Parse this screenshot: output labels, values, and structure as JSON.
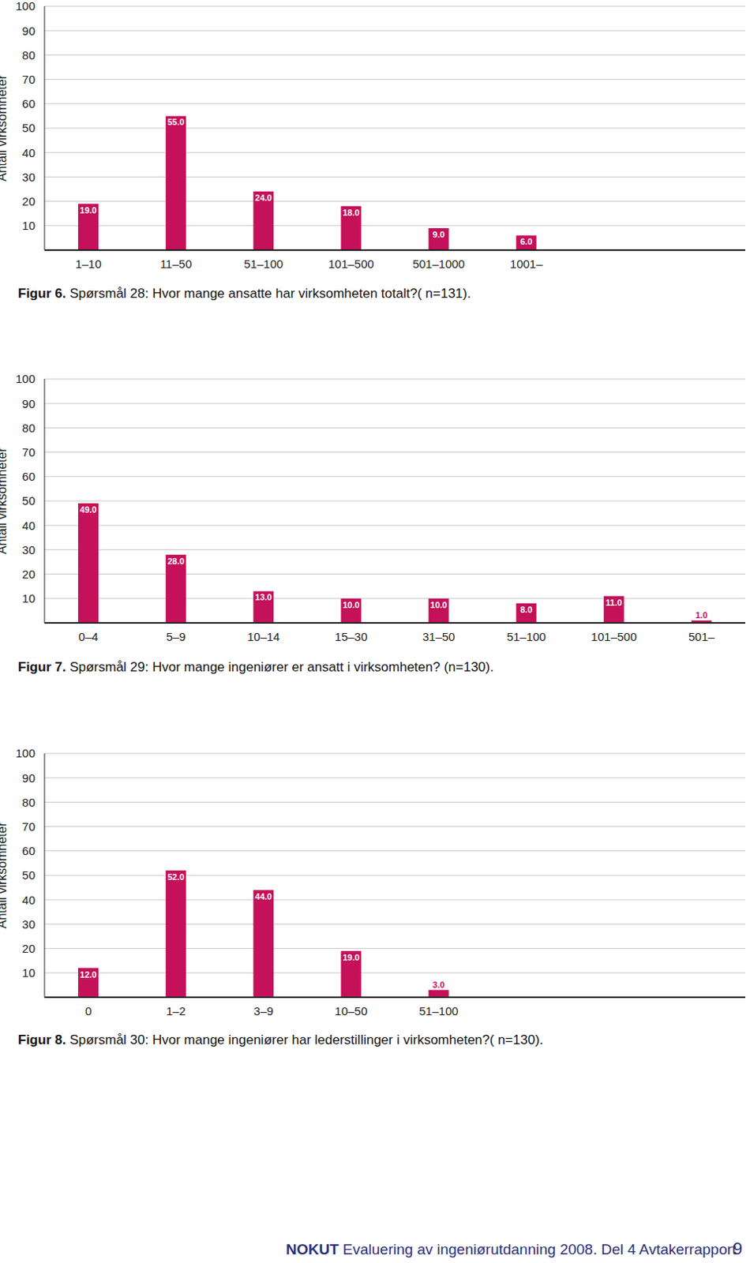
{
  "chart_data": [
    {
      "type": "bar",
      "figure_label": "Figur 6.",
      "title": "Spørsmål 28: Hvor mange ansatte har virksomheten totalt?( n=131).",
      "y_label": "Antall virksomheter",
      "categories": [
        "1–10",
        "11–50",
        "51–100",
        "101–500",
        "501–1000",
        "1001–"
      ],
      "values": [
        19,
        55,
        24,
        18,
        9,
        6
      ],
      "value_labels": [
        "19.0",
        "55.0",
        "24.0",
        "18.0",
        "9.0",
        "6.0"
      ],
      "color": "#c5105a",
      "ylim": [
        0,
        100
      ],
      "yticks": [
        10,
        20,
        30,
        40,
        50,
        60,
        70,
        80,
        90,
        100
      ],
      "grid": true,
      "data_labels": true
    },
    {
      "type": "bar",
      "figure_label": "Figur 7.",
      "title": "Spørsmål 29: Hvor mange ingeniører er ansatt i virksomheten? (n=130).",
      "y_label": "Antall virksomheter",
      "categories": [
        "0–4",
        "5–9",
        "10–14",
        "15–30",
        "31–50",
        "51–100",
        "101–500",
        "501–"
      ],
      "values": [
        49,
        28,
        13,
        10,
        10,
        8,
        11,
        1
      ],
      "value_labels": [
        "49.0",
        "28.0",
        "13.0",
        "10.0",
        "10.0",
        "8.0",
        "11.0",
        "1.0"
      ],
      "color": "#c5105a",
      "ylim": [
        0,
        100
      ],
      "yticks": [
        10,
        20,
        30,
        40,
        50,
        60,
        70,
        80,
        90,
        100
      ],
      "grid": true,
      "data_labels": true
    },
    {
      "type": "bar",
      "figure_label": "Figur 8.",
      "title": "Spørsmål 30: Hvor mange ingeniører har lederstillinger i virksomheten?( n=130).",
      "y_label": "Antall virksomheter",
      "categories": [
        "0",
        "1–2",
        "3–9",
        "10–50",
        "51–100"
      ],
      "values": [
        12,
        52,
        44,
        19,
        3
      ],
      "value_labels": [
        "12.0",
        "52.0",
        "44.0",
        "19.0",
        "3.0"
      ],
      "color": "#c5105a",
      "ylim": [
        0,
        100
      ],
      "yticks": [
        10,
        20,
        30,
        40,
        50,
        60,
        70,
        80,
        90,
        100
      ],
      "grid": true,
      "data_labels": true
    }
  ],
  "footer": {
    "brand": "NOKUT",
    "text": "Evaluering av ingeniørutdanning 2008. Del 4 Avtakerrapport",
    "page": "9"
  }
}
